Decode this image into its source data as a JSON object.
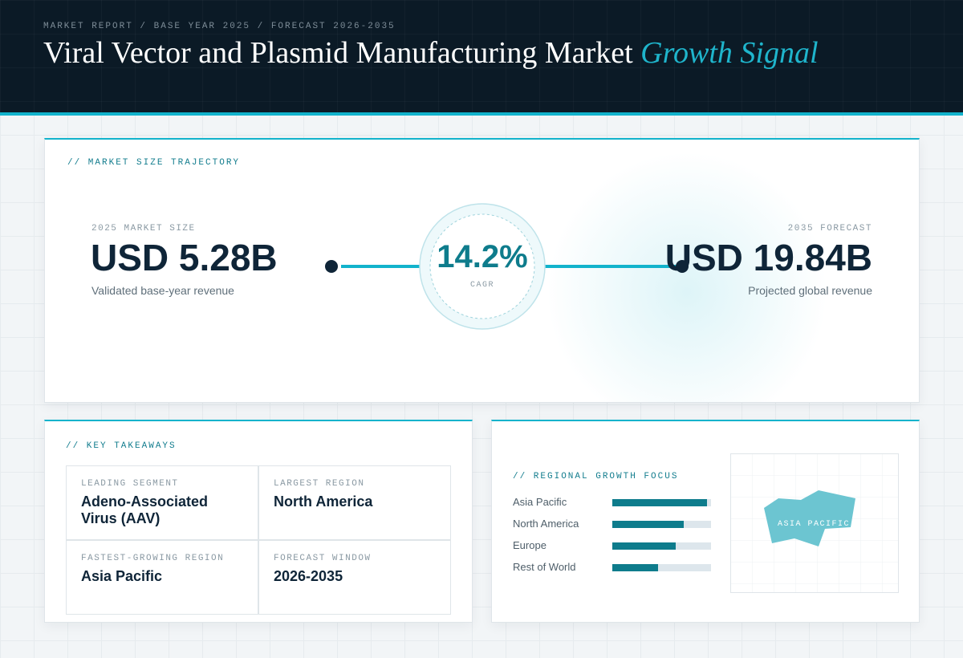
{
  "header": {
    "eyebrow": "MARKET REPORT / BASE YEAR 2025 / FORECAST 2026-2035",
    "title": "Viral Vector and Plasmid Manufacturing Market",
    "title_accent": "Growth Signal"
  },
  "trajectory": {
    "label": "// MARKET SIZE TRAJECTORY",
    "start": {
      "label": "2025 MARKET SIZE",
      "value": "USD 5.28B",
      "note": "Validated base-year revenue"
    },
    "cagr": {
      "value": "14.2%",
      "label": "CAGR"
    },
    "end": {
      "label": "2035 FORECAST",
      "value": "USD 19.84B",
      "note": "Projected global revenue"
    }
  },
  "takeaways": {
    "label": "// KEY TAKEAWAYS",
    "cells": [
      {
        "label": "LEADING SEGMENT",
        "value": "Adeno-Associated Virus (AAV)"
      },
      {
        "label": "LARGEST REGION",
        "value": "North America"
      },
      {
        "label": "FASTEST-GROWING REGION",
        "value": "Asia Pacific"
      },
      {
        "label": "FORECAST WINDOW",
        "value": "2026-2035"
      }
    ]
  },
  "regional": {
    "label": "// REGIONAL GROWTH FOCUS",
    "xlim": [
      0,
      100
    ],
    "bars": [
      {
        "name": "Asia Pacific",
        "value": 96
      },
      {
        "name": "North America",
        "value": 72
      },
      {
        "name": "Europe",
        "value": 64
      },
      {
        "name": "Rest of World",
        "value": 46
      }
    ],
    "map_label": "ASIA PACIFIC"
  }
}
